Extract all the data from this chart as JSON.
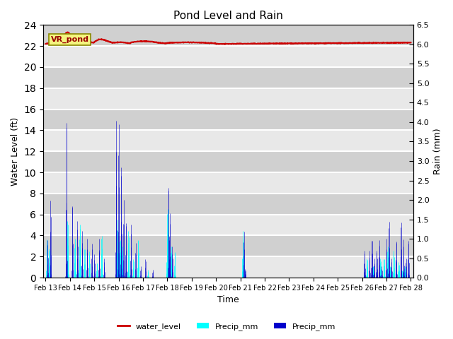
{
  "title": "Pond Level and Rain",
  "xlabel": "Time",
  "ylabel_left": "Water Level (ft)",
  "ylabel_right": "Rain (mm)",
  "annotation_text": "VR_pond",
  "ylim_left": [
    0,
    24
  ],
  "ylim_right": [
    0.0,
    6.5
  ],
  "yticks_left": [
    0,
    2,
    4,
    6,
    8,
    10,
    12,
    14,
    16,
    18,
    20,
    22,
    24
  ],
  "yticks_right": [
    0.0,
    0.5,
    1.0,
    1.5,
    2.0,
    2.5,
    3.0,
    3.5,
    4.0,
    4.5,
    5.0,
    5.5,
    6.0,
    6.5
  ],
  "water_level_color": "#cc0000",
  "precip_cyan_color": "cyan",
  "precip_blue_color": "#0000cc",
  "bg_light": "#e8e8e8",
  "bg_dark": "#d0d0d0",
  "grid_color": "white",
  "annotation_bg": "#f5f580",
  "annotation_border": "#888800",
  "n_days": 15,
  "xtick_labels": [
    "Feb 13",
    "Feb 14",
    "Feb 15",
    "Feb 16",
    "Feb 17",
    "Feb 18",
    "Feb 19",
    "Feb 20",
    "Feb 21",
    "Feb 22",
    "Feb 23",
    "Feb 24",
    "Feb 25",
    "Feb 26",
    "Feb 27",
    "Feb 28"
  ]
}
